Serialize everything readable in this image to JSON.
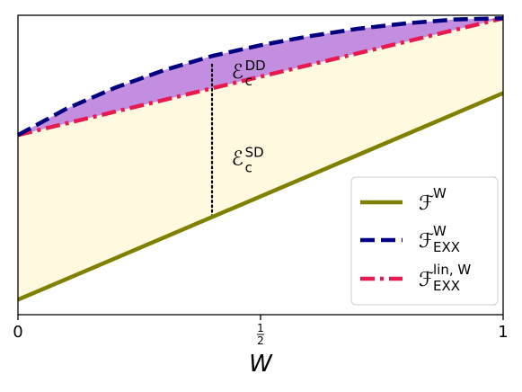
{
  "chart_data": {
    "type": "line",
    "xlabel": "W",
    "xlim": [
      0,
      1
    ],
    "ylim": [
      0,
      1
    ],
    "xticks": [
      {
        "value": 0,
        "label": "0"
      },
      {
        "value": 0.5,
        "label_num": "1",
        "label_den": "2"
      },
      {
        "value": 1,
        "label": "1"
      }
    ],
    "grid": false,
    "legend_position": "lower-right",
    "colors": {
      "F_W": "#808000",
      "F_EXX_W": "#000080",
      "F_EXX_lin_W": "#e8194f",
      "fill_sd": "#fff9e0",
      "fill_dd": "#c38ee0"
    },
    "series": [
      {
        "key": "F_W",
        "legend_main": "ℱ",
        "legend_sup": "W",
        "legend_sub": "",
        "style": "solid",
        "x": [
          0,
          1
        ],
        "y": [
          0.05,
          0.74
        ]
      },
      {
        "key": "F_EXX_W",
        "legend_main": "ℱ",
        "legend_sup": "W",
        "legend_sub": "EXX",
        "style": "dashed",
        "x": [
          0,
          0.1,
          0.2,
          0.3,
          0.4,
          0.5,
          0.6,
          0.7,
          0.8,
          0.9,
          1.0
        ],
        "y": [
          0.6,
          0.688,
          0.758,
          0.816,
          0.864,
          0.9,
          0.93,
          0.955,
          0.973,
          0.986,
          0.99
        ]
      },
      {
        "key": "F_EXX_lin_W",
        "legend_main": "ℱ",
        "legend_sup": "lin, W",
        "legend_sub": "EXX",
        "style": "dashdot",
        "x": [
          0,
          1
        ],
        "y": [
          0.6,
          0.99
        ]
      }
    ],
    "annotations": [
      {
        "main": "ℰ",
        "sub": "c",
        "sup": "DD",
        "x": 0.44,
        "y": 0.79
      },
      {
        "main": "ℰ",
        "sub": "c",
        "sup": "SD",
        "x": 0.44,
        "y": 0.5
      }
    ],
    "marker_line": {
      "x": 0.4,
      "y_from": 0.327,
      "y_to": 0.845
    }
  }
}
